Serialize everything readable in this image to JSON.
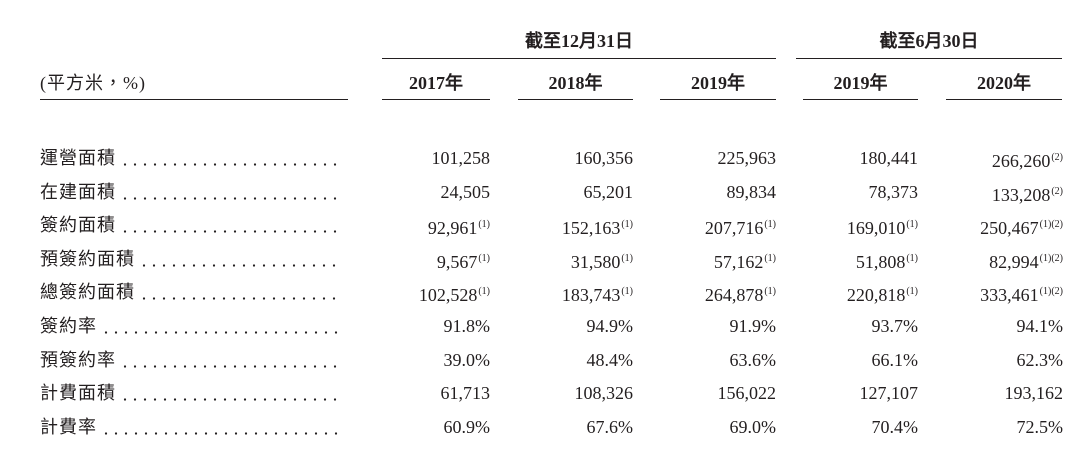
{
  "header": {
    "unit": "(平方米，%)",
    "groups": [
      "截至12月31日",
      "截至6月30日"
    ],
    "columns": [
      "2017年",
      "2018年",
      "2019年",
      "2019年",
      "2020年"
    ]
  },
  "table": {
    "rows": [
      {
        "label": "運營面積",
        "cells": [
          "101,258",
          "160,356",
          "225,963",
          "180,441",
          {
            "text": "266,260",
            "note": "(2)"
          }
        ]
      },
      {
        "label": "在建面積",
        "cells": [
          "24,505",
          "65,201",
          "89,834",
          "78,373",
          {
            "text": "133,208",
            "note": "(2)"
          }
        ]
      },
      {
        "label": "簽約面積",
        "cells": [
          {
            "text": "92,961",
            "note": "(1)"
          },
          {
            "text": "152,163",
            "note": "(1)"
          },
          {
            "text": "207,716",
            "note": "(1)"
          },
          {
            "text": "169,010",
            "note": "(1)"
          },
          {
            "text": "250,467",
            "note": "(1)(2)"
          }
        ]
      },
      {
        "label": "預簽約面積",
        "cells": [
          {
            "text": "9,567",
            "note": "(1)"
          },
          {
            "text": "31,580",
            "note": "(1)"
          },
          {
            "text": "57,162",
            "note": "(1)"
          },
          {
            "text": "51,808",
            "note": "(1)"
          },
          {
            "text": "82,994",
            "note": "(1)(2)"
          }
        ]
      },
      {
        "label": "總簽約面積",
        "cells": [
          {
            "text": "102,528",
            "note": "(1)"
          },
          {
            "text": "183,743",
            "note": "(1)"
          },
          {
            "text": "264,878",
            "note": "(1)"
          },
          {
            "text": "220,818",
            "note": "(1)"
          },
          {
            "text": "333,461",
            "note": "(1)(2)"
          }
        ]
      },
      {
        "label": "簽約率",
        "cells": [
          "91.8%",
          "94.9%",
          "91.9%",
          "93.7%",
          "94.1%"
        ]
      },
      {
        "label": "預簽約率",
        "cells": [
          "39.0%",
          "48.4%",
          "63.6%",
          "66.1%",
          "62.3%"
        ]
      },
      {
        "label": "計費面積",
        "cells": [
          "61,713",
          "108,326",
          "156,022",
          "127,107",
          "193,162"
        ]
      },
      {
        "label": "計費率",
        "cells": [
          "60.9%",
          "67.6%",
          "69.0%",
          "70.4%",
          "72.5%"
        ]
      }
    ]
  }
}
